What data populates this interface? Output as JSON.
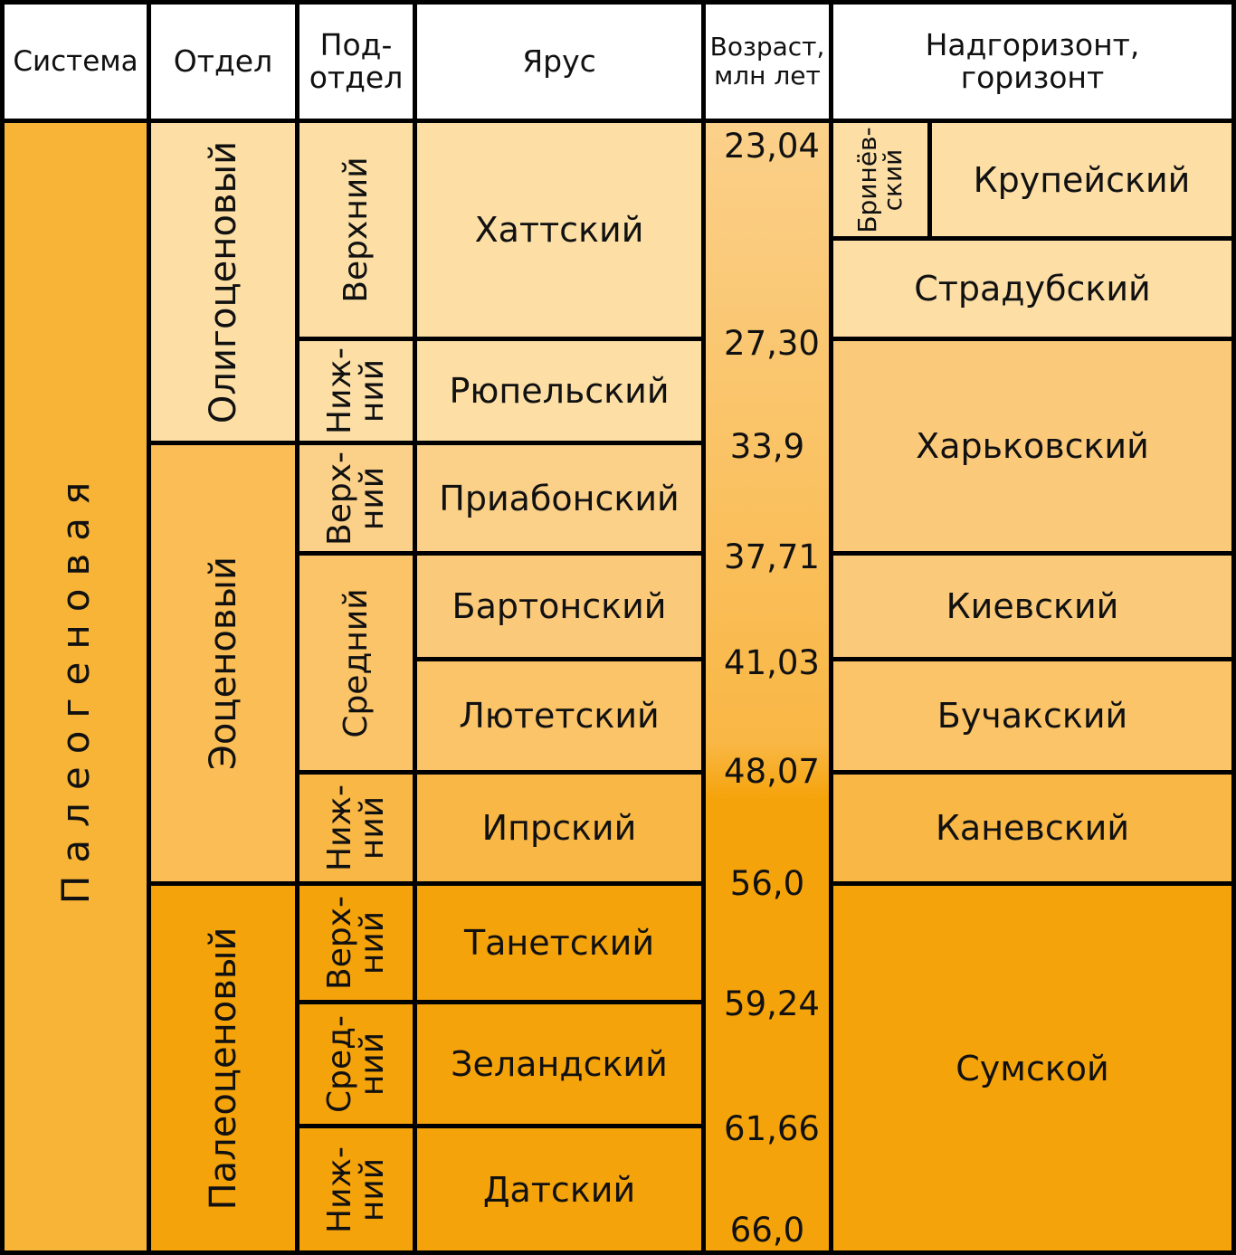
{
  "header": {
    "system": "Система",
    "series": "Отдел",
    "subseries": "Под-\nотдел",
    "stage": "Ярус",
    "age": "Возраст,\nмлн лет",
    "horizon": "Надгоризонт,\nгоризонт"
  },
  "system": "Палеогеновая",
  "series": [
    "Олигоценовый",
    "Эоценовый",
    "Палеоценовый"
  ],
  "subseries": [
    "Верхний",
    "Ниж-\nний",
    "Верх-\nний",
    "Средний",
    "Ниж-\nний",
    "Верх-\nний",
    "Сред-\nний",
    "Ниж-\nний"
  ],
  "stages": [
    "Хаттский",
    "Рюпельский",
    "Приабонский",
    "Бартонский",
    "Лютетский",
    "Ипрский",
    "Танетский",
    "Зеландский",
    "Датский"
  ],
  "ages": [
    "23,04",
    "27,30",
    "33,9",
    "37,71",
    "41,03",
    "48,07",
    "56,0",
    "59,24",
    "61,66",
    "66,0"
  ],
  "horizons": [
    "Бринёв-\nский",
    "Крупейский",
    "Страдубский",
    "Харьковский",
    "Киевский",
    "Бучакский",
    "Каневский",
    "Сумской"
  ],
  "colors": {
    "oligocene": "#fddfa6",
    "eocene": "#fbbd55",
    "paleocene": "#f5a30a",
    "system": "#f8b436"
  }
}
